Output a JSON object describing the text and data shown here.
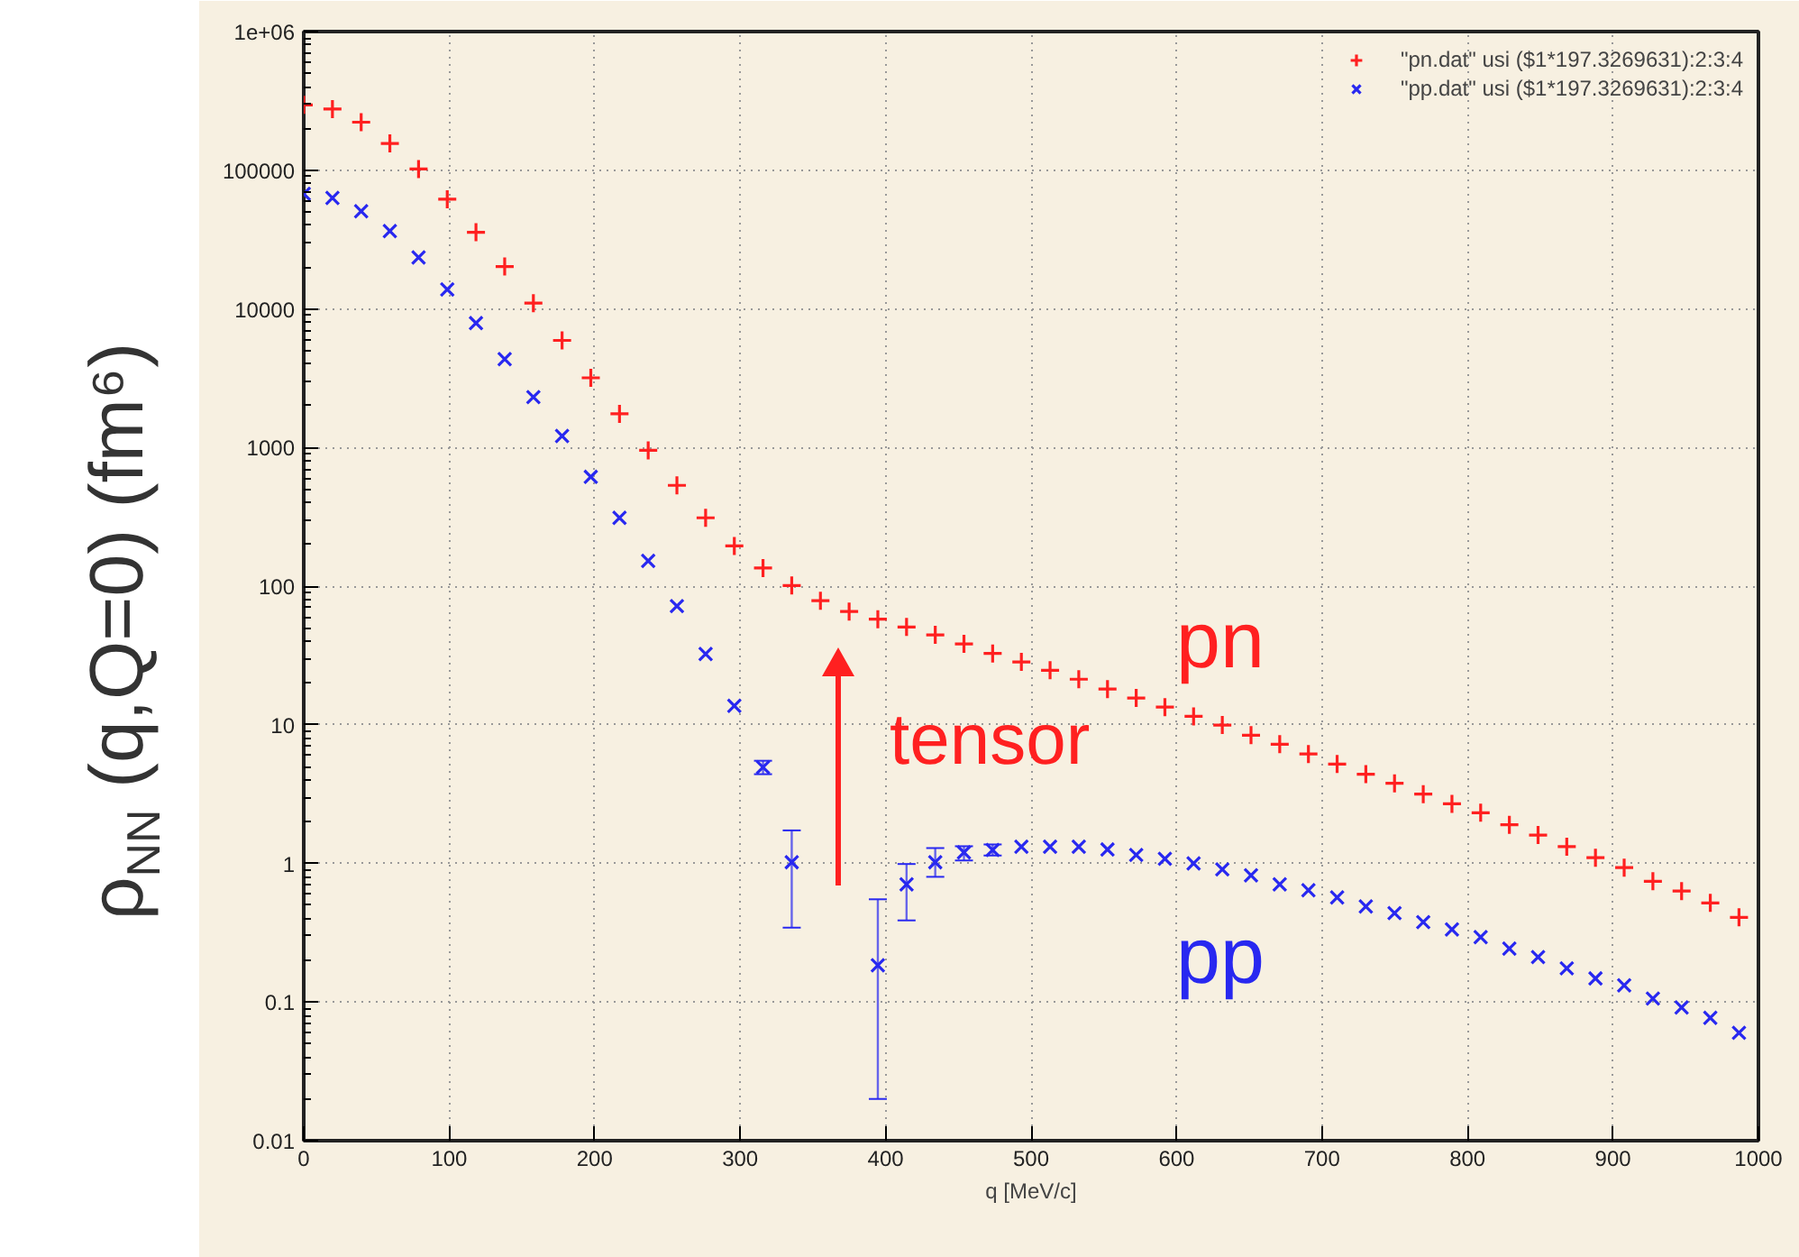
{
  "chart_data": {
    "type": "scatter",
    "xlabel": "q [MeV/c]",
    "ylabel": "ρ$_{NN}$ (q,Q=0) (fm⁶)",
    "log": "y",
    "grid": true,
    "legend": "top right",
    "xlim": [
      0,
      1000
    ],
    "xticks": [
      0,
      100,
      200,
      300,
      400,
      500,
      600,
      700,
      800,
      900,
      1000
    ],
    "ylim": [
      0.01,
      1000000
    ],
    "yticks": [
      0.01,
      0.1,
      1,
      10,
      100,
      1000,
      10000,
      100000,
      {
        "value": 1000000,
        "label": "1e+06"
      }
    ],
    "x": [
      0,
      19.73,
      39.47,
      59.2,
      78.93,
      98.66,
      118.4,
      138.13,
      157.86,
      177.59,
      197.33,
      217.06,
      236.79,
      256.53,
      276.26,
      295.99,
      315.72,
      335.46,
      355.19,
      374.92,
      394.65,
      414.39,
      434.12,
      453.85,
      473.58,
      493.32,
      513.05,
      532.78,
      552.52,
      572.25,
      591.98,
      611.71,
      631.45,
      651.18,
      670.91,
      690.64,
      710.38,
      730.11,
      749.84,
      769.58,
      789.31,
      809.04,
      828.77,
      848.51,
      868.24,
      887.97,
      907.7,
      927.44,
      947.17,
      966.9,
      986.63
    ],
    "series": [
      {
        "name": "\"pn.dat\" usi ($1*197.3269631):2:3:4",
        "color": "#ff2020",
        "marker": "cross",
        "values": [
          296000,
          276000,
          222000,
          156000,
          102000,
          61800,
          35700,
          20200,
          11000,
          5920,
          3180,
          1750,
          953,
          533,
          311,
          195,
          135,
          101,
          78.5,
          65.6,
          57.7,
          50.7,
          44.5,
          38.3,
          32.7,
          28.4,
          24.7,
          21.3,
          18.1,
          15.6,
          13.4,
          11.5,
          9.95,
          8.41,
          7.24,
          6.15,
          5.21,
          4.4,
          3.78,
          3.16,
          2.69,
          2.32,
          1.9,
          1.6,
          1.32,
          1.1,
          0.933,
          0.743,
          0.632,
          0.519,
          0.408
        ]
      },
      {
        "name": "\"pp.dat\" usi ($1*197.3269631):2:3:4",
        "color": "#2828f0",
        "marker": "x",
        "values": [
          67600,
          63100,
          50600,
          36400,
          23500,
          13800,
          7890,
          4340,
          2310,
          1210,
          614,
          311,
          152,
          71.8,
          32.4,
          13.7,
          4.94,
          1.02,
          null,
          null,
          0.184,
          0.706,
          1.02,
          1.2,
          1.25,
          1.32,
          1.32,
          1.32,
          1.26,
          1.15,
          1.08,
          1.0,
          0.905,
          0.82,
          0.706,
          0.64,
          0.568,
          0.489,
          0.438,
          0.377,
          0.334,
          0.294,
          0.243,
          0.211,
          0.175,
          0.148,
          0.132,
          0.106,
          0.0914,
          0.077,
          0.06
        ],
        "errors": [
          null,
          null,
          null,
          null,
          null,
          null,
          null,
          null,
          null,
          null,
          null,
          null,
          null,
          null,
          null,
          null,
          [
            4.4,
            5.5
          ],
          [
            0.344,
            1.73
          ],
          null,
          null,
          [
            0.02,
            0.551
          ],
          [
            0.388,
            0.99
          ],
          [
            0.8,
            1.29
          ],
          [
            1.05,
            1.33
          ],
          [
            1.14,
            1.37
          ],
          null,
          null,
          null,
          null,
          null,
          null,
          null,
          null,
          null,
          null,
          null,
          null,
          null,
          null,
          null,
          null,
          null,
          null,
          null,
          null,
          null,
          null,
          null,
          null,
          null,
          null
        ]
      }
    ],
    "annotations": [
      "pn",
      "pp",
      "tensor"
    ]
  }
}
